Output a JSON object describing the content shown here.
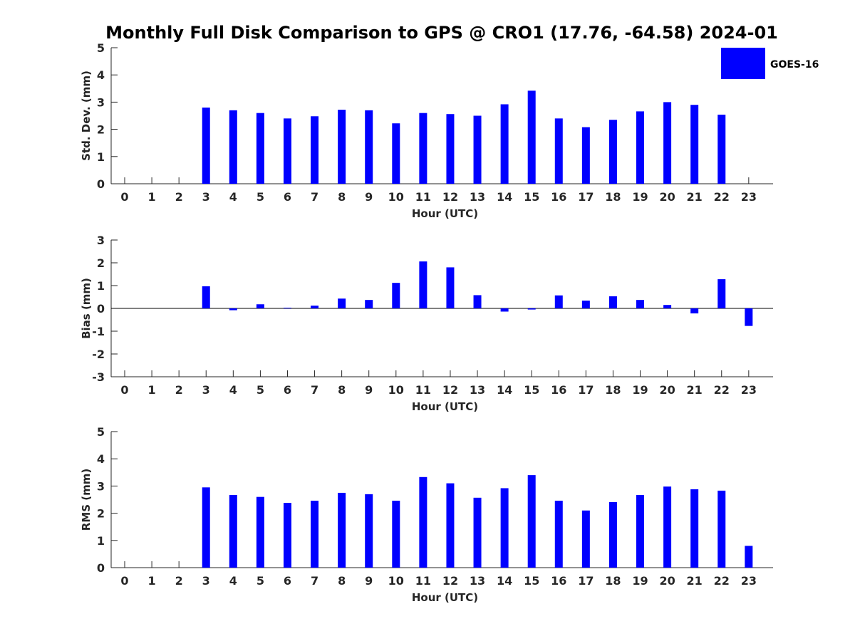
{
  "title": "Monthly Full Disk Comparison to GPS @ CRO1 (17.76, -64.58) 2024-01",
  "legend": {
    "label": "GOES-16",
    "color": "#0000ff"
  },
  "chart_data": [
    {
      "type": "bar",
      "ylabel": "Std. Dev. (mm)",
      "xlabel": "Hour (UTC)",
      "ylim": [
        0,
        5
      ],
      "yticks": [
        0,
        1,
        2,
        3,
        4,
        5
      ],
      "categories": [
        "0",
        "1",
        "2",
        "3",
        "4",
        "5",
        "6",
        "7",
        "8",
        "9",
        "10",
        "11",
        "12",
        "13",
        "14",
        "15",
        "16",
        "17",
        "18",
        "19",
        "20",
        "21",
        "22",
        "23"
      ],
      "series": [
        {
          "name": "GOES-16",
          "values": [
            null,
            null,
            null,
            2.8,
            2.7,
            2.6,
            2.4,
            2.48,
            2.72,
            2.7,
            2.22,
            2.6,
            2.56,
            2.5,
            2.92,
            3.42,
            2.4,
            2.08,
            2.35,
            2.66,
            3.0,
            2.9,
            2.54,
            null
          ]
        }
      ]
    },
    {
      "type": "bar",
      "ylabel": "Bias (mm)",
      "xlabel": "Hour (UTC)",
      "ylim": [
        -3,
        3
      ],
      "yticks": [
        -3,
        -2,
        -1,
        0,
        1,
        2,
        3
      ],
      "categories": [
        "0",
        "1",
        "2",
        "3",
        "4",
        "5",
        "6",
        "7",
        "8",
        "9",
        "10",
        "11",
        "12",
        "13",
        "14",
        "15",
        "16",
        "17",
        "18",
        "19",
        "20",
        "21",
        "22",
        "23"
      ],
      "series": [
        {
          "name": "GOES-16",
          "values": [
            null,
            null,
            null,
            0.97,
            -0.08,
            0.18,
            0.03,
            0.12,
            0.43,
            0.37,
            1.12,
            2.06,
            1.8,
            0.58,
            -0.14,
            -0.05,
            0.57,
            0.34,
            0.53,
            0.37,
            0.15,
            -0.22,
            1.28,
            -0.77
          ]
        }
      ]
    },
    {
      "type": "bar",
      "ylabel": "RMS (mm)",
      "xlabel": "Hour (UTC)",
      "ylim": [
        0,
        5
      ],
      "yticks": [
        0,
        1,
        2,
        3,
        4,
        5
      ],
      "categories": [
        "0",
        "1",
        "2",
        "3",
        "4",
        "5",
        "6",
        "7",
        "8",
        "9",
        "10",
        "11",
        "12",
        "13",
        "14",
        "15",
        "16",
        "17",
        "18",
        "19",
        "20",
        "21",
        "22",
        "23"
      ],
      "series": [
        {
          "name": "GOES-16",
          "values": [
            null,
            null,
            null,
            2.95,
            2.67,
            2.6,
            2.38,
            2.46,
            2.75,
            2.7,
            2.46,
            3.33,
            3.1,
            2.57,
            2.92,
            3.4,
            2.46,
            2.1,
            2.41,
            2.67,
            2.98,
            2.88,
            2.83,
            0.8
          ]
        }
      ]
    }
  ]
}
